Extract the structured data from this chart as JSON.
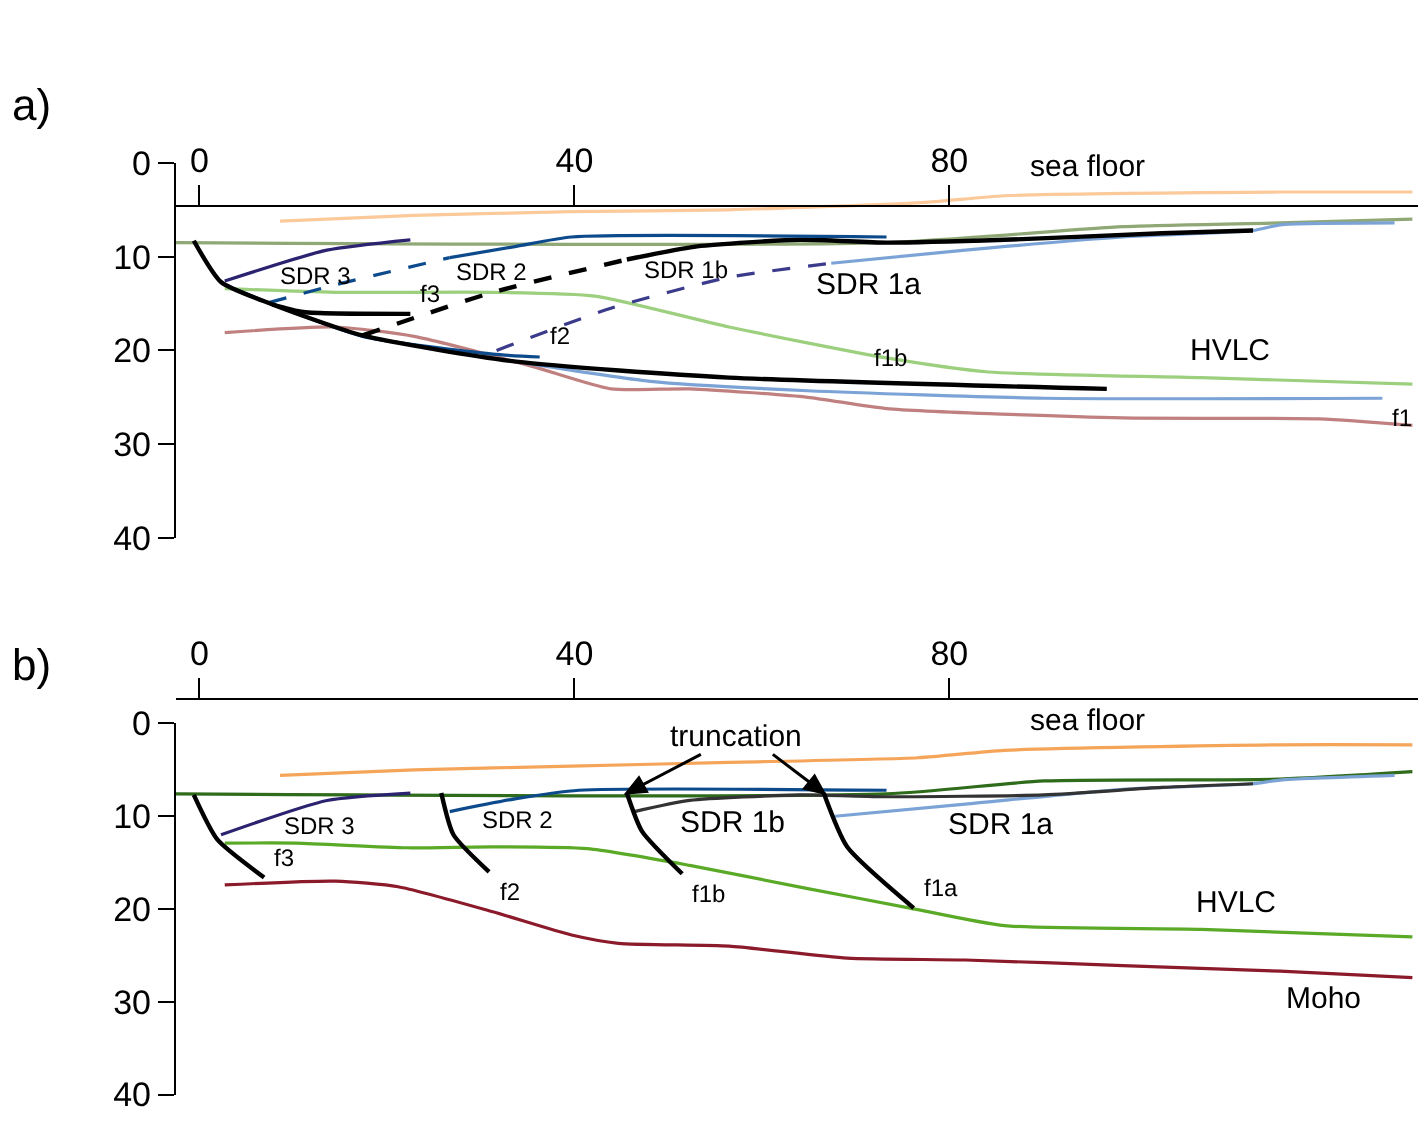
{
  "chart_data": [
    {
      "type": "line",
      "title": "a)",
      "xlim": [
        -2.5,
        130
      ],
      "xticks": [
        0,
        40,
        80
      ],
      "ylim": [
        40,
        0
      ],
      "yticks": [
        0,
        10,
        20,
        30,
        40
      ],
      "marker": "none",
      "series": [
        {
          "color": "#fbc99a",
          "x": [
            8.6,
            22.9,
            39.7,
            56.5,
            77.5,
            85.9,
            115.3,
            129.4
          ],
          "values": [
            6.2,
            5.6,
            5.2,
            5.0,
            4.2,
            3.5,
            3.1,
            3.1
          ]
        },
        {
          "color": "#8fa876",
          "x": [
            -2.5,
            73.3,
            98.5,
            115.3,
            129.4
          ],
          "values": [
            8.5,
            8.5,
            6.8,
            6.4,
            6.0
          ]
        },
        {
          "color": "#9ccf7e",
          "x": [
            2.7,
            14.5,
            31.3,
            42.2,
            56.5,
            73.3,
            84.2,
            106.9,
            129.4
          ],
          "values": [
            13.4,
            13.8,
            13.8,
            14.2,
            17.5,
            20.8,
            22.3,
            22.9,
            23.6
          ]
        },
        {
          "color": "#c08080",
          "x": [
            2.7,
            14.5,
            22.9,
            35.5,
            43.9,
            52.3,
            64.9,
            73.3,
            98.5,
            119.5,
            129.4
          ],
          "values": [
            18.1,
            17.5,
            18.5,
            21.7,
            24.1,
            24.1,
            25.0,
            26.2,
            27.2,
            27.3,
            28.0
          ]
        },
        {
          "color": "#7ba3d6",
          "x": [
            33.8,
            48.1,
            64.9,
            90.1,
            126.2
          ],
          "values": [
            21.2,
            23.3,
            24.3,
            25.1,
            25.1
          ]
        },
        {
          "color": "#7ba3d6",
          "x": [
            67.4,
            81.7,
            98.5,
            112.4,
            115.3,
            127.5
          ],
          "values": [
            10.7,
            9.3,
            7.9,
            7.2,
            6.6,
            6.4
          ]
        },
        {
          "color": "#000000",
          "x": [
            45.6,
            53.1,
            64.1,
            73.3,
            85.9,
            102.7,
            112.4
          ],
          "values": [
            10.3,
            8.9,
            8.2,
            8.5,
            8.2,
            7.5,
            7.2
          ]
        },
        {
          "color": "#0c4a8c",
          "x": [
            26.7,
            33.8,
            39.7,
            73.3
          ],
          "values": [
            10.1,
            8.9,
            7.9,
            7.9
          ]
        },
        {
          "color": "#2b2270",
          "x": [
            2.7,
            13.6,
            22.5
          ],
          "values": [
            12.6,
            9.3,
            8.2
          ]
        },
        {
          "color": "#0c4a8c",
          "line_style": "dashed",
          "x": [
            7.4,
            14.5,
            26.7
          ],
          "values": [
            14.9,
            13.0,
            10.1
          ]
        },
        {
          "color": "#000000",
          "line_style": "dashed",
          "x": [
            17.4,
            31.3,
            45.6
          ],
          "values": [
            18.4,
            13.8,
            10.3
          ]
        },
        {
          "color": "#3b3b8c",
          "line_style": "dashed",
          "x": [
            31.7,
            43.9,
            56.5,
            67.4
          ],
          "values": [
            20.0,
            15.5,
            12.2,
            10.7
          ]
        },
        {
          "color": "#0c4a8c",
          "x": [
            2.7,
            7.8,
            17.4,
            31.3,
            36.3
          ],
          "values": [
            13.0,
            15.1,
            18.5,
            20.4,
            20.7
          ]
        },
        {
          "color": "#000000",
          "x": [
            7.8,
            11.1,
            22.5
          ],
          "values": [
            15.1,
            15.9,
            16.1
          ]
        },
        {
          "color": "#000000",
          "x": [
            -0.6,
            2.3,
            7.8,
            17.4,
            33.8,
            56.5,
            96.8
          ],
          "values": [
            8.3,
            12.7,
            15.1,
            18.4,
            21.2,
            22.9,
            24.1
          ]
        }
      ],
      "annotations": [
        {
          "text": "sea floor",
          "x": 94.7,
          "y": 3.4
        },
        {
          "text": "SDR 3",
          "x": 12.4,
          "y": 9.7
        },
        {
          "text": "SDR 2",
          "x": 31.2,
          "y": 9.3
        },
        {
          "text": "SDR 1b",
          "x": 52.0,
          "y": 9.1
        },
        {
          "text": "SDR 1a",
          "x": 71.5,
          "y": 10.3
        },
        {
          "text": "f3",
          "x": 22.5,
          "y": 16.1
        },
        {
          "text": "f2",
          "x": 36.3,
          "y": 20.7
        },
        {
          "text": "f1b",
          "x": 73.8,
          "y": 23.4
        },
        {
          "text": "HVLC",
          "x": 110.0,
          "y": 23.0
        },
        {
          "text": "f1",
          "x": 126.2,
          "y": 25.1
        }
      ]
    },
    {
      "type": "line",
      "title": "b)",
      "xlim": [
        -2.5,
        130
      ],
      "xticks": [
        0,
        40,
        80
      ],
      "ylim": [
        40,
        0
      ],
      "yticks": [
        0,
        10,
        20,
        30,
        40
      ],
      "marker": "none",
      "series": [
        {
          "color": "#f5a55a",
          "x": [
            8.6,
            22.9,
            39.7,
            56.5,
            76.7,
            85.9,
            115.3,
            129.4
          ],
          "values": [
            5.6,
            5.0,
            4.6,
            4.2,
            3.7,
            2.9,
            2.3,
            2.3
          ]
        },
        {
          "color": "#2e6b1a",
          "x": [
            -2.5,
            73.3,
            90.1,
            115.3,
            129.4
          ],
          "values": [
            7.6,
            7.6,
            6.2,
            6.0,
            5.2
          ]
        },
        {
          "color": "#5aaa28",
          "x": [
            2.7,
            10.3,
            22.1,
            31.3,
            41.4,
            52.3,
            64.9,
            75.8,
            85.9,
            106.9,
            129.4
          ],
          "values": [
            12.9,
            12.9,
            13.4,
            13.3,
            13.5,
            15.3,
            17.8,
            19.9,
            21.8,
            22.2,
            23.0
          ]
        },
        {
          "color": "#8b1a2a",
          "x": [
            2.7,
            14.5,
            21.2,
            31.3,
            39.7,
            44.7,
            56.5,
            69.1,
            81.7,
            98.5,
            115.3,
            129.4
          ],
          "values": [
            17.4,
            17.0,
            17.6,
            20.3,
            22.8,
            23.7,
            24.0,
            25.3,
            25.5,
            26.1,
            26.7,
            27.4
          ]
        },
        {
          "color": "#7ba3d6",
          "x": [
            67.8,
            81.7,
            98.5,
            112.4,
            115.3,
            127.5
          ],
          "values": [
            10.0,
            8.7,
            7.1,
            6.5,
            6.1,
            5.6
          ]
        },
        {
          "color": "#333333",
          "x": [
            46.4,
            52.3,
            64.1,
            73.3,
            90.1,
            102.7,
            112.4
          ],
          "values": [
            9.5,
            8.3,
            7.7,
            7.9,
            7.7,
            6.9,
            6.5
          ]
        },
        {
          "color": "#0c4a8c",
          "x": [
            26.7,
            33.8,
            40.5,
            73.3
          ],
          "values": [
            9.5,
            8.1,
            7.2,
            7.2
          ]
        },
        {
          "color": "#2b2270",
          "x": [
            2.3,
            13.6,
            22.5
          ],
          "values": [
            12.0,
            8.3,
            7.5
          ]
        },
        {
          "color": "#000000",
          "x": [
            -0.6,
            1.9,
            6.9
          ],
          "values": [
            7.7,
            12.5,
            16.6
          ]
        },
        {
          "color": "#000000",
          "x": [
            25.8,
            27.1,
            30.9
          ],
          "values": [
            7.5,
            12.0,
            16.0
          ]
        },
        {
          "color": "#000000",
          "x": [
            45.6,
            47.2,
            51.5
          ],
          "values": [
            7.5,
            11.6,
            16.2
          ]
        },
        {
          "color": "#000000",
          "x": [
            66.6,
            69.1,
            76.2
          ],
          "values": [
            7.5,
            13.3,
            19.9
          ]
        }
      ],
      "annotations": [
        {
          "text": "truncation",
          "x": 45.6,
          "y": 7.5
        },
        {
          "text": "sea floor",
          "x": 94.7,
          "y": 2.7
        },
        {
          "text": "SDR 3",
          "x": 12.8,
          "y": 8.6
        },
        {
          "text": "SDR 2",
          "x": 34.0,
          "y": 8.1
        },
        {
          "text": "SDR 1b",
          "x": 57.0,
          "y": 8.1
        },
        {
          "text": "SDR 1a",
          "x": 85.5,
          "y": 8.3
        },
        {
          "text": "f3",
          "x": 6.9,
          "y": 16.6
        },
        {
          "text": "f2",
          "x": 30.9,
          "y": 16.0
        },
        {
          "text": "f1b",
          "x": 51.5,
          "y": 16.2
        },
        {
          "text": "f1a",
          "x": 76.2,
          "y": 19.9
        },
        {
          "text": "HVLC",
          "x": 110.5,
          "y": 22.3
        },
        {
          "text": "Moho",
          "x": 120.0,
          "y": 26.9
        }
      ]
    }
  ]
}
